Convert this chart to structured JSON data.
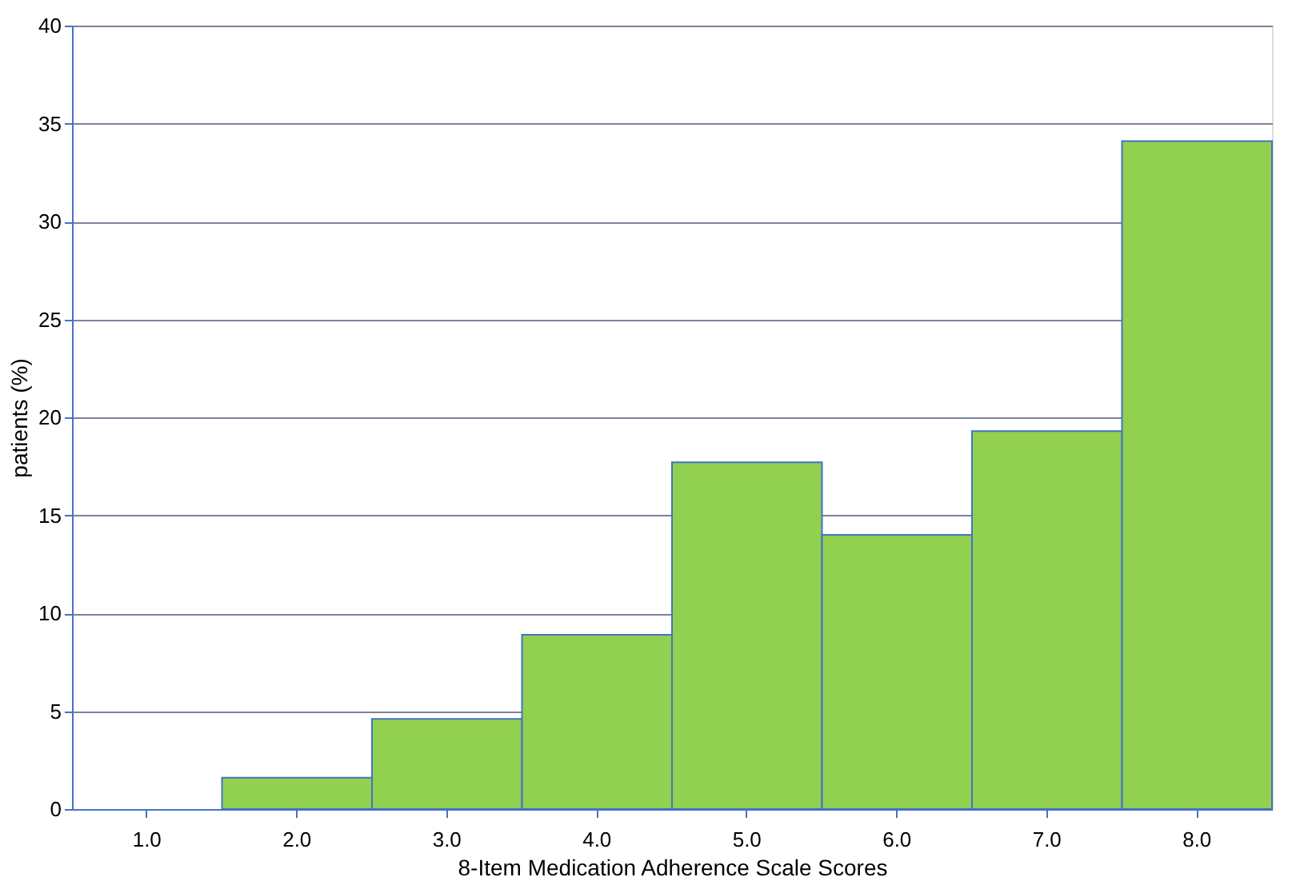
{
  "chart_data": {
    "type": "bar",
    "xlabel": "8-Item Medication Adherence Scale Scores",
    "ylabel": "patients (%)",
    "categories": [
      "1.0",
      "2.0",
      "3.0",
      "4.0",
      "5.0",
      "6.0",
      "7.0",
      "8.0"
    ],
    "values": [
      0,
      1.6,
      4.6,
      8.9,
      17.7,
      14.0,
      19.3,
      34.1
    ],
    "color": "#92d050",
    "ylim": [
      0,
      40
    ],
    "yticks": [
      0,
      5,
      10,
      15,
      20,
      25,
      30,
      35,
      40
    ],
    "grid": "y"
  }
}
